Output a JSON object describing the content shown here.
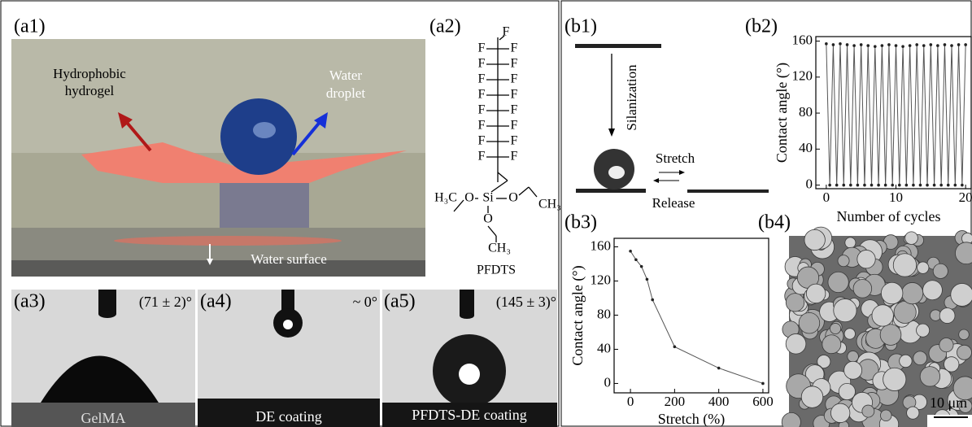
{
  "panels": {
    "a1": {
      "label": "(a1)",
      "hydrogel": [
        "Hydrophobic",
        "hydrogel"
      ],
      "droplet": [
        "Water",
        "droplet"
      ],
      "surface": "Water surface"
    },
    "a2": {
      "label": "(a2)",
      "atoms": [
        "F",
        "F",
        "F",
        "F",
        "F",
        "F",
        "F",
        "F",
        "F",
        "F",
        "F",
        "F",
        "F",
        "F",
        "F",
        "F",
        "F"
      ],
      "h3c": "H₃C",
      "o1": "O",
      "si": "Si",
      "o2": "O",
      "ch3a": "CH₃",
      "o3": "O",
      "ch3b": "CH₃",
      "name": "PFDTS"
    },
    "a3": {
      "label": "(a3)",
      "angle": "(71 ± 2)°",
      "caption": "GelMA"
    },
    "a4": {
      "label": "(a4)",
      "angle": "~ 0°",
      "caption": "DE coating"
    },
    "a5": {
      "label": "(a5)",
      "angle": "(145 ± 3)°",
      "caption": "PFDTS-DE coating"
    },
    "b1": {
      "label": "(b1)",
      "silanization": "Silanization",
      "stretch": "Stretch",
      "release": "Release"
    },
    "b2": {
      "label": "(b2)"
    },
    "b3": {
      "label": "(b3)"
    },
    "b4": {
      "label": "(b4)",
      "scale": "10 μm"
    }
  },
  "chart_data": [
    {
      "type": "line",
      "xlabel": "Number of cycles",
      "ylabel": "Contact angle (°)",
      "x": [
        0,
        0.5,
        1,
        1.5,
        2,
        2.5,
        3,
        3.5,
        4,
        4.5,
        5,
        5.5,
        6,
        6.5,
        7,
        7.5,
        8,
        8.5,
        9,
        9.5,
        10,
        10.5,
        11,
        11.5,
        12,
        12.5,
        13,
        13.5,
        14,
        14.5,
        15,
        15.5,
        16,
        16.5,
        17,
        17.5,
        18,
        18.5,
        19,
        19.5,
        20
      ],
      "values": [
        157,
        0,
        156,
        0,
        157,
        0,
        156,
        0,
        155,
        0,
        156,
        0,
        155,
        0,
        154,
        0,
        155,
        0,
        156,
        0,
        155,
        0,
        154,
        0,
        155,
        0,
        156,
        0,
        155,
        0,
        156,
        0,
        155,
        0,
        156,
        0,
        155,
        0,
        156,
        0,
        156
      ],
      "color": "#555555",
      "xlim": [
        -1.5,
        20.8
      ],
      "ylim": [
        -4,
        165
      ],
      "xticks": [
        0,
        10,
        20
      ],
      "yticks": [
        0,
        40,
        80,
        120,
        160
      ]
    },
    {
      "type": "line",
      "xlabel": "Stretch (%)",
      "ylabel": "Contact angle (°)",
      "x": [
        0,
        25,
        50,
        75,
        100,
        200,
        400,
        600
      ],
      "values": [
        155,
        145,
        137,
        122,
        98,
        43,
        18,
        0
      ],
      "color": "#555555",
      "xlim": [
        -74,
        626
      ],
      "ylim": [
        -11,
        170
      ],
      "xticks": [
        0,
        200,
        400,
        600
      ],
      "yticks": [
        0,
        40,
        80,
        120,
        160
      ]
    }
  ]
}
